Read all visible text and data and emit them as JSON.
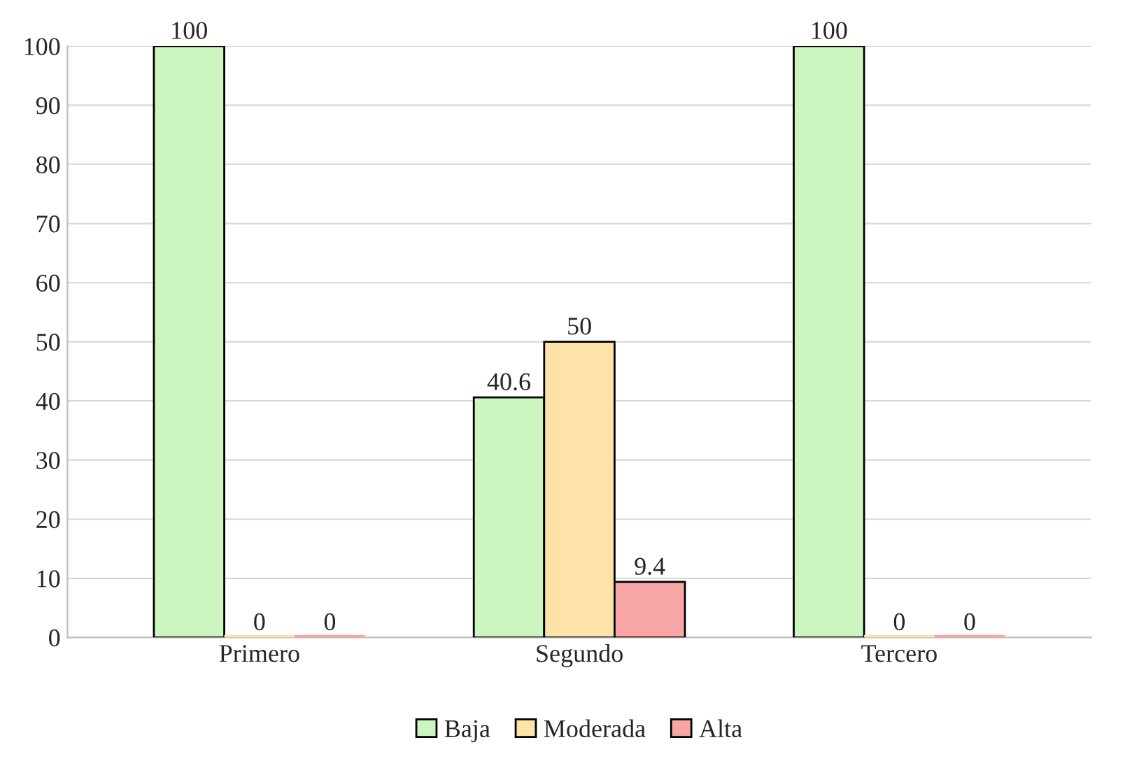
{
  "chart_data": {
    "type": "bar",
    "categories": [
      "Primero",
      "Segundo",
      "Tercero"
    ],
    "series": [
      {
        "name": "Baja",
        "color": "#ccf5c0",
        "values": [
          100,
          40.6,
          100
        ]
      },
      {
        "name": "Moderada",
        "color": "#fde3a7",
        "values": [
          0,
          50,
          0
        ]
      },
      {
        "name": "Alta",
        "color": "#f8a5a5",
        "values": [
          0,
          9.4,
          0
        ]
      }
    ],
    "ylim": [
      0,
      100
    ],
    "yticks": [
      0,
      10,
      20,
      30,
      40,
      50,
      60,
      70,
      80,
      90,
      100
    ],
    "grid": "y",
    "legend": "bottom",
    "data_labels": true
  }
}
